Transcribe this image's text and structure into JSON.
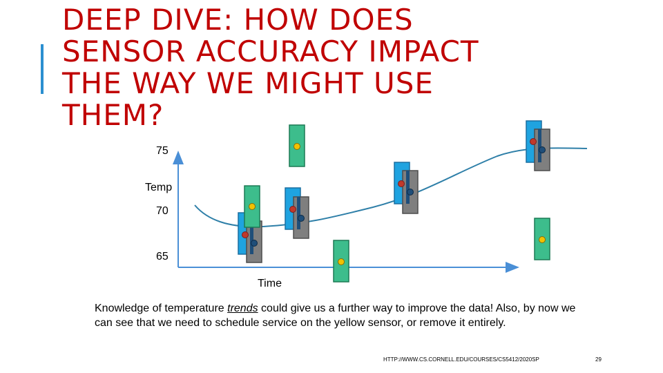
{
  "title_lines": [
    "DEEP DIVE: HOW DOES",
    "SENSOR ACCURACY IMPACT",
    "THE WAY WE MIGHT USE",
    "THEM?"
  ],
  "axis": {
    "y_tick_75": "75",
    "y_label": "Temp",
    "y_tick_70": "70",
    "y_tick_65": "65",
    "x_label": "Time"
  },
  "caption": {
    "part1": "Knowledge of temperature ",
    "emph": "trends",
    "part2": " could give us a further way to improve the data! Also, by now we can see that we need to schedule service on the yellow sensor, or remove it entirely."
  },
  "footer": {
    "url": "HTTP://WWW.CS.CORNELL.EDU/COURSES/CS5412/2020SP",
    "page": "29"
  },
  "colors": {
    "title": "#c00000",
    "axis": "#4a8fd6",
    "curve": "#2e7fa8",
    "sensor_blue": "#1fa3e0",
    "sensor_grey": "#7f7f7f",
    "sensor_green": "#3dbd8c",
    "dot_red": "#c0392b",
    "dot_yellow": "#f2c200",
    "dot_dark": "#1f4e79"
  }
}
